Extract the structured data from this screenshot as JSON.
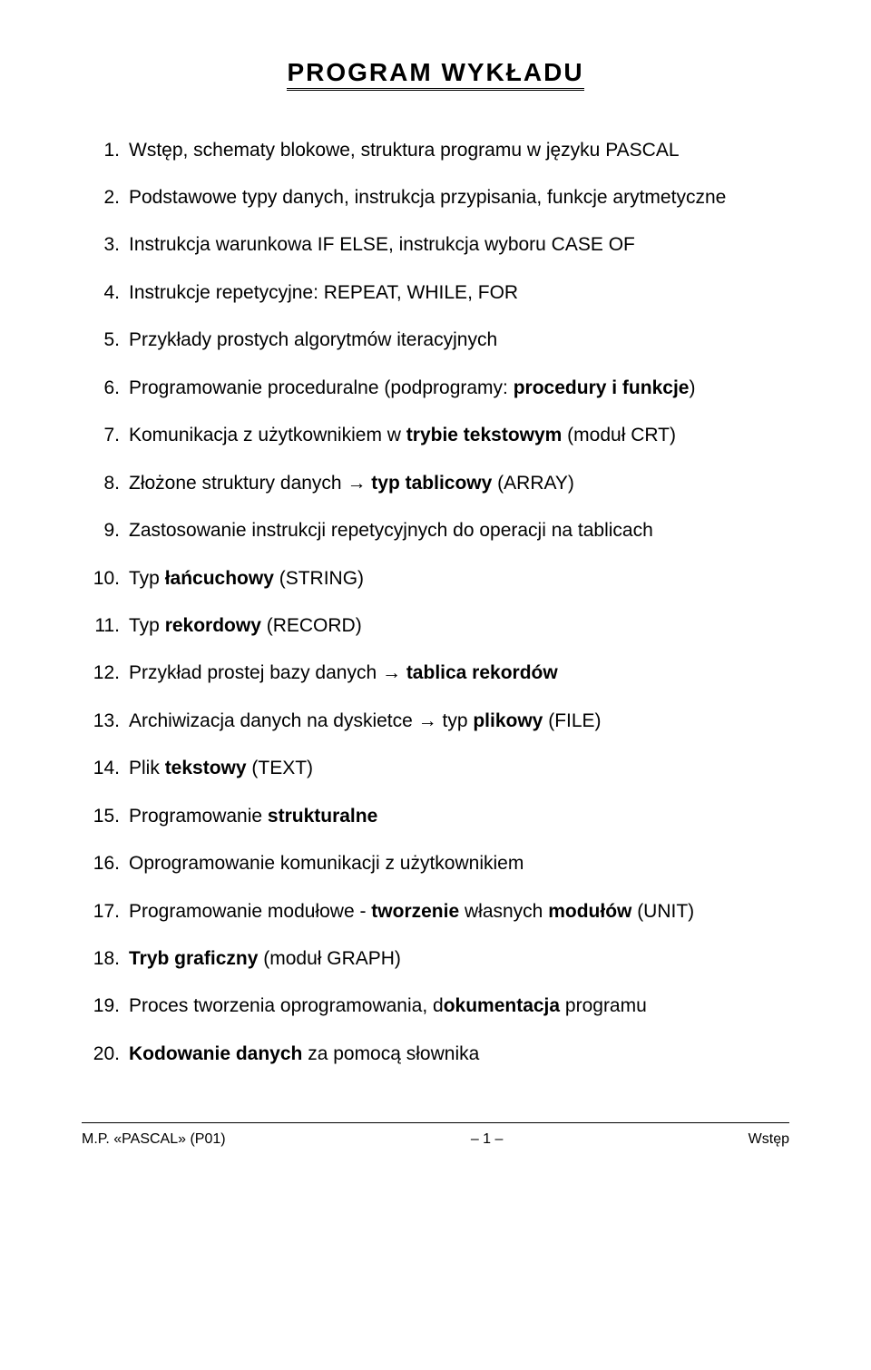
{
  "title": "PROGRAM  WYKŁADU",
  "items": [
    {
      "n": "1.",
      "html": "Wstęp, schematy blokowe, struktura programu w języku PASCAL"
    },
    {
      "n": "2.",
      "html": "Podstawowe typy danych, instrukcja przypisania, funkcje arytmetyczne"
    },
    {
      "n": "3.",
      "html": "Instrukcja warunkowa IF ELSE, instrukcja wyboru CASE OF"
    },
    {
      "n": "4.",
      "html": "Instrukcje repetycyjne: REPEAT, WHILE, FOR"
    },
    {
      "n": "5.",
      "html": "Przykłady prostych algorytmów iteracyjnych"
    },
    {
      "n": "6.",
      "html": "Programowanie proceduralne (podprogramy: <span class='b'>procedury i funkcje</span>)"
    },
    {
      "n": "7.",
      "html": "Komunikacja z użytkownikiem w <span class='b'>trybie tekstowym</span> (moduł CRT)"
    },
    {
      "n": "8.",
      "html": "Złożone struktury danych → <span class='b'>typ tablicowy</span> (ARRAY)"
    },
    {
      "n": "9.",
      "html": "Zastosowanie instrukcji repetycyjnych do operacji na tablicach"
    },
    {
      "n": "10.",
      "html": "Typ <span class='b'>łańcuchowy</span> (STRING)"
    },
    {
      "n": "11.",
      "html": "Typ <span class='b'>rekordowy</span> (RECORD)"
    },
    {
      "n": "12.",
      "html": "Przykład prostej bazy danych → <span class='b'>tablica rekordów</span>"
    },
    {
      "n": "13.",
      "html": "Archiwizacja danych na dyskietce → typ <span class='b'>plikowy</span> (FILE)"
    },
    {
      "n": "14.",
      "html": "Plik <span class='b'>tekstowy</span> (TEXT)"
    },
    {
      "n": "15.",
      "html": "Programowanie <span class='b'>strukturalne</span>"
    },
    {
      "n": "16.",
      "html": "Oprogramowanie komunikacji z użytkownikiem"
    },
    {
      "n": "17.",
      "html": "Programowanie modułowe - <span class='b'>tworzenie</span> własnych <span class='b'>modułów</span> (UNIT)"
    },
    {
      "n": "18.",
      "html": "<span class='b'>Tryb graficzny</span> (moduł GRAPH)"
    },
    {
      "n": "19.",
      "html": "Proces tworzenia oprogramowania, d<span class='b'>okumentacja</span> programu"
    },
    {
      "n": "20.",
      "html": "<span class='b'>Kodowanie danych</span> za pomocą słownika"
    }
  ],
  "footer": {
    "left": "M.P. «PASCAL» (P01)",
    "center": "– 1 –",
    "right": "Wstęp"
  }
}
